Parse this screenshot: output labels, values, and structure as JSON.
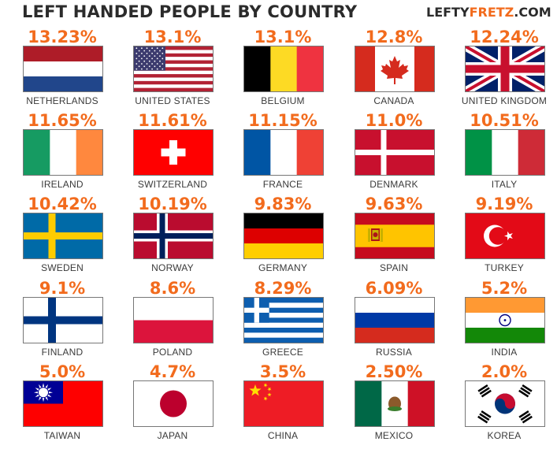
{
  "title": "LEFT HANDED PEOPLE BY COUNTRY",
  "brand": {
    "prefix": "LEFTY",
    "accent": "FRETZ",
    "suffix": ".COM"
  },
  "colors": {
    "accent": "#f26b1d",
    "title": "#2b2b2b"
  },
  "chart_data": {
    "type": "table",
    "title": "LEFT HANDED PEOPLE BY COUNTRY",
    "columns": [
      "country",
      "percent"
    ],
    "rows": [
      {
        "country": "NETHERLANDS",
        "label": "13.23%",
        "value": 13.23,
        "flag": "netherlands-flag"
      },
      {
        "country": "UNITED STATES",
        "label": "13.1%",
        "value": 13.1,
        "flag": "usa-flag"
      },
      {
        "country": "BELGIUM",
        "label": "13.1%",
        "value": 13.1,
        "flag": "belgium-flag"
      },
      {
        "country": "CANADA",
        "label": "12.8%",
        "value": 12.8,
        "flag": "canada-flag"
      },
      {
        "country": "UNITED KINGDOM",
        "label": "12.24%",
        "value": 12.24,
        "flag": "uk-flag"
      },
      {
        "country": "IRELAND",
        "label": "11.65%",
        "value": 11.65,
        "flag": "ireland-flag"
      },
      {
        "country": "SWITZERLAND",
        "label": "11.61%",
        "value": 11.61,
        "flag": "switzerland-flag"
      },
      {
        "country": "FRANCE",
        "label": "11.15%",
        "value": 11.15,
        "flag": "france-flag"
      },
      {
        "country": "DENMARK",
        "label": "11.0%",
        "value": 11.0,
        "flag": "denmark-flag"
      },
      {
        "country": "ITALY",
        "label": "10.51%",
        "value": 10.51,
        "flag": "italy-flag"
      },
      {
        "country": "SWEDEN",
        "label": "10.42%",
        "value": 10.42,
        "flag": "sweden-flag"
      },
      {
        "country": "NORWAY",
        "label": "10.19%",
        "value": 10.19,
        "flag": "norway-flag"
      },
      {
        "country": "GERMANY",
        "label": "9.83%",
        "value": 9.83,
        "flag": "germany-flag"
      },
      {
        "country": "SPAIN",
        "label": "9.63%",
        "value": 9.63,
        "flag": "spain-flag"
      },
      {
        "country": "TURKEY",
        "label": "9.19%",
        "value": 9.19,
        "flag": "turkey-flag"
      },
      {
        "country": "FINLAND",
        "label": "9.1%",
        "value": 9.1,
        "flag": "finland-flag"
      },
      {
        "country": "POLAND",
        "label": "8.6%",
        "value": 8.6,
        "flag": "poland-flag"
      },
      {
        "country": "GREECE",
        "label": "8.29%",
        "value": 8.29,
        "flag": "greece-flag"
      },
      {
        "country": "RUSSIA",
        "label": "6.09%",
        "value": 6.09,
        "flag": "russia-flag"
      },
      {
        "country": "INDIA",
        "label": "5.2%",
        "value": 5.2,
        "flag": "india-flag"
      },
      {
        "country": "TAIWAN",
        "label": "5.0%",
        "value": 5.0,
        "flag": "taiwan-flag"
      },
      {
        "country": "JAPAN",
        "label": "4.7%",
        "value": 4.7,
        "flag": "japan-flag"
      },
      {
        "country": "CHINA",
        "label": "3.5%",
        "value": 3.5,
        "flag": "china-flag"
      },
      {
        "country": "MEXICO",
        "label": "2.50%",
        "value": 2.5,
        "flag": "mexico-flag"
      },
      {
        "country": "KOREA",
        "label": "2.0%",
        "value": 2.0,
        "flag": "korea-flag"
      }
    ]
  }
}
